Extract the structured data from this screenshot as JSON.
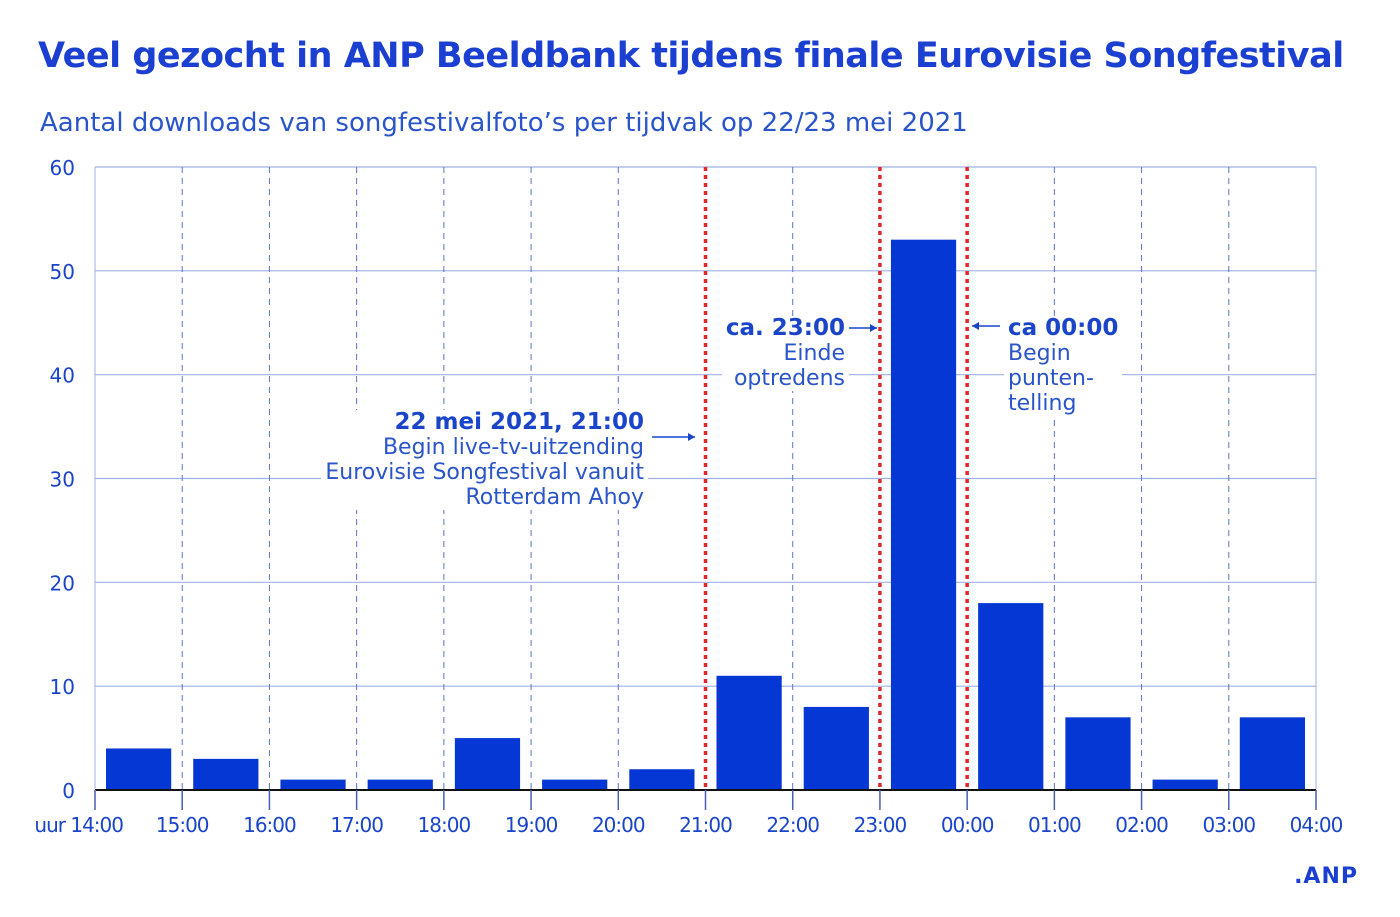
{
  "title": "Veel gezocht in ANP Beeldbank tijdens finale Eurovisie Songfestival",
  "subtitle": "Aantal downloads van songfestivalfoto’s per tijdvak op 22/23 mei 2021",
  "logo": ".ANP",
  "colors": {
    "bar": "#0537d4",
    "grid": "#9fb1e3",
    "marker": "#e2262c",
    "text": "#1a45c8"
  },
  "annotations": [
    {
      "bold": "22 mei 2021, 21:00",
      "lines": [
        "Begin live-tv-uitzending",
        "Eurovisie Songfestival vanuit",
        "Rotterdam Ahoy"
      ]
    },
    {
      "bold": "ca. 23:00",
      "lines": [
        "Einde",
        "optredens"
      ]
    },
    {
      "bold": "ca 00:00",
      "lines": [
        "Begin",
        "punten-",
        "telling"
      ]
    }
  ],
  "chart_data": {
    "type": "bar",
    "title": "Veel gezocht in ANP Beeldbank tijdens finale Eurovisie Songfestival",
    "xlabel": "uur",
    "ylabel": "",
    "ylim": [
      0,
      60
    ],
    "yticks": [
      "0",
      "10",
      "20",
      "30",
      "40",
      "50",
      "60"
    ],
    "xticks": [
      "uur 14:00",
      "15:00",
      "16:00",
      "17:00",
      "18:00",
      "19:00",
      "20:00",
      "21:00",
      "22:00",
      "23:00",
      "00:00",
      "01:00",
      "02:00",
      "03:00",
      "04:00"
    ],
    "categories": [
      "14-15",
      "15-16",
      "16-17",
      "17-18",
      "18-19",
      "19-20",
      "20-21",
      "21-22",
      "22-23",
      "23-00",
      "00-01",
      "01-02",
      "02-03",
      "03-04"
    ],
    "values": [
      4,
      3,
      1,
      1,
      5,
      1,
      2,
      11,
      8,
      53,
      18,
      7,
      1,
      7
    ],
    "markers_at_tick": [
      7,
      9,
      10
    ],
    "grid": true
  }
}
